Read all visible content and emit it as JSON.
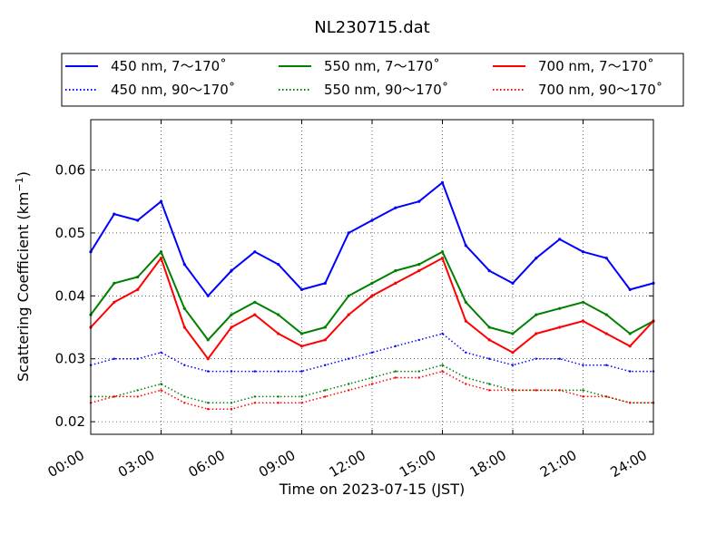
{
  "chart_data": {
    "type": "line",
    "title": "NL230715.dat",
    "xlabel": "Time on 2023-07-15 (JST)",
    "ylabel": "Scattering Coefficient (km⁻¹)",
    "ylabel_base": "Scattering Coefficient (km",
    "ylabel_sup": "−1",
    "ylabel_close": ")",
    "xlim": [
      "00:00",
      "24:00"
    ],
    "ylim": [
      0.018,
      0.068
    ],
    "x_ticks": [
      "00:00",
      "03:00",
      "06:00",
      "09:00",
      "12:00",
      "15:00",
      "18:00",
      "21:00",
      "24:00"
    ],
    "y_ticks": [
      "0.02",
      "0.03",
      "0.04",
      "0.05",
      "0.06"
    ],
    "y_tick_values": [
      0.02,
      0.03,
      0.04,
      0.05,
      0.06
    ],
    "grid": true,
    "legend_position": "top, above plot",
    "x": [
      "00:00",
      "01:00",
      "02:00",
      "03:00",
      "04:00",
      "05:00",
      "06:00",
      "07:00",
      "08:00",
      "09:00",
      "10:00",
      "11:00",
      "12:00",
      "13:00",
      "14:00",
      "15:00",
      "16:00",
      "17:00",
      "18:00",
      "19:00",
      "20:00",
      "21:00",
      "22:00",
      "23:00",
      "24:00"
    ],
    "series": [
      {
        "name": "450 nm, 7～170˚",
        "color": "#0000ff",
        "style": "solid",
        "values": [
          0.047,
          0.053,
          0.052,
          0.055,
          0.045,
          0.04,
          0.044,
          0.047,
          0.045,
          0.041,
          0.042,
          0.05,
          0.052,
          0.054,
          0.055,
          0.058,
          0.048,
          0.044,
          0.042,
          0.046,
          0.049,
          0.047,
          0.046,
          0.041,
          0.042
        ]
      },
      {
        "name": "450 nm, 90～170˚",
        "color": "#0000ff",
        "style": "dotted",
        "values": [
          0.029,
          0.03,
          0.03,
          0.031,
          0.029,
          0.028,
          0.028,
          0.028,
          0.028,
          0.028,
          0.029,
          0.03,
          0.031,
          0.032,
          0.033,
          0.034,
          0.031,
          0.03,
          0.029,
          0.03,
          0.03,
          0.029,
          0.029,
          0.028,
          0.028
        ]
      },
      {
        "name": "550 nm, 7～170˚",
        "color": "#008000",
        "style": "solid",
        "values": [
          0.037,
          0.042,
          0.043,
          0.047,
          0.038,
          0.033,
          0.037,
          0.039,
          0.037,
          0.034,
          0.035,
          0.04,
          0.042,
          0.044,
          0.045,
          0.047,
          0.039,
          0.035,
          0.034,
          0.037,
          0.038,
          0.039,
          0.037,
          0.034,
          0.036
        ]
      },
      {
        "name": "550 nm, 90～170˚",
        "color": "#008000",
        "style": "dotted",
        "values": [
          0.024,
          0.024,
          0.025,
          0.026,
          0.024,
          0.023,
          0.023,
          0.024,
          0.024,
          0.024,
          0.025,
          0.026,
          0.027,
          0.028,
          0.028,
          0.029,
          0.027,
          0.026,
          0.025,
          0.025,
          0.025,
          0.025,
          0.024,
          0.023,
          0.023
        ]
      },
      {
        "name": "700 nm, 7～170˚",
        "color": "#ff0000",
        "style": "solid",
        "values": [
          0.035,
          0.039,
          0.041,
          0.046,
          0.035,
          0.03,
          0.035,
          0.037,
          0.034,
          0.032,
          0.033,
          0.037,
          0.04,
          0.042,
          0.044,
          0.046,
          0.036,
          0.033,
          0.031,
          0.034,
          0.035,
          0.036,
          0.034,
          0.032,
          0.036
        ]
      },
      {
        "name": "700 nm, 90～170˚",
        "color": "#ff0000",
        "style": "dotted",
        "values": [
          0.023,
          0.024,
          0.024,
          0.025,
          0.023,
          0.022,
          0.022,
          0.023,
          0.023,
          0.023,
          0.024,
          0.025,
          0.026,
          0.027,
          0.027,
          0.028,
          0.026,
          0.025,
          0.025,
          0.025,
          0.025,
          0.024,
          0.024,
          0.023,
          0.023
        ]
      }
    ]
  }
}
